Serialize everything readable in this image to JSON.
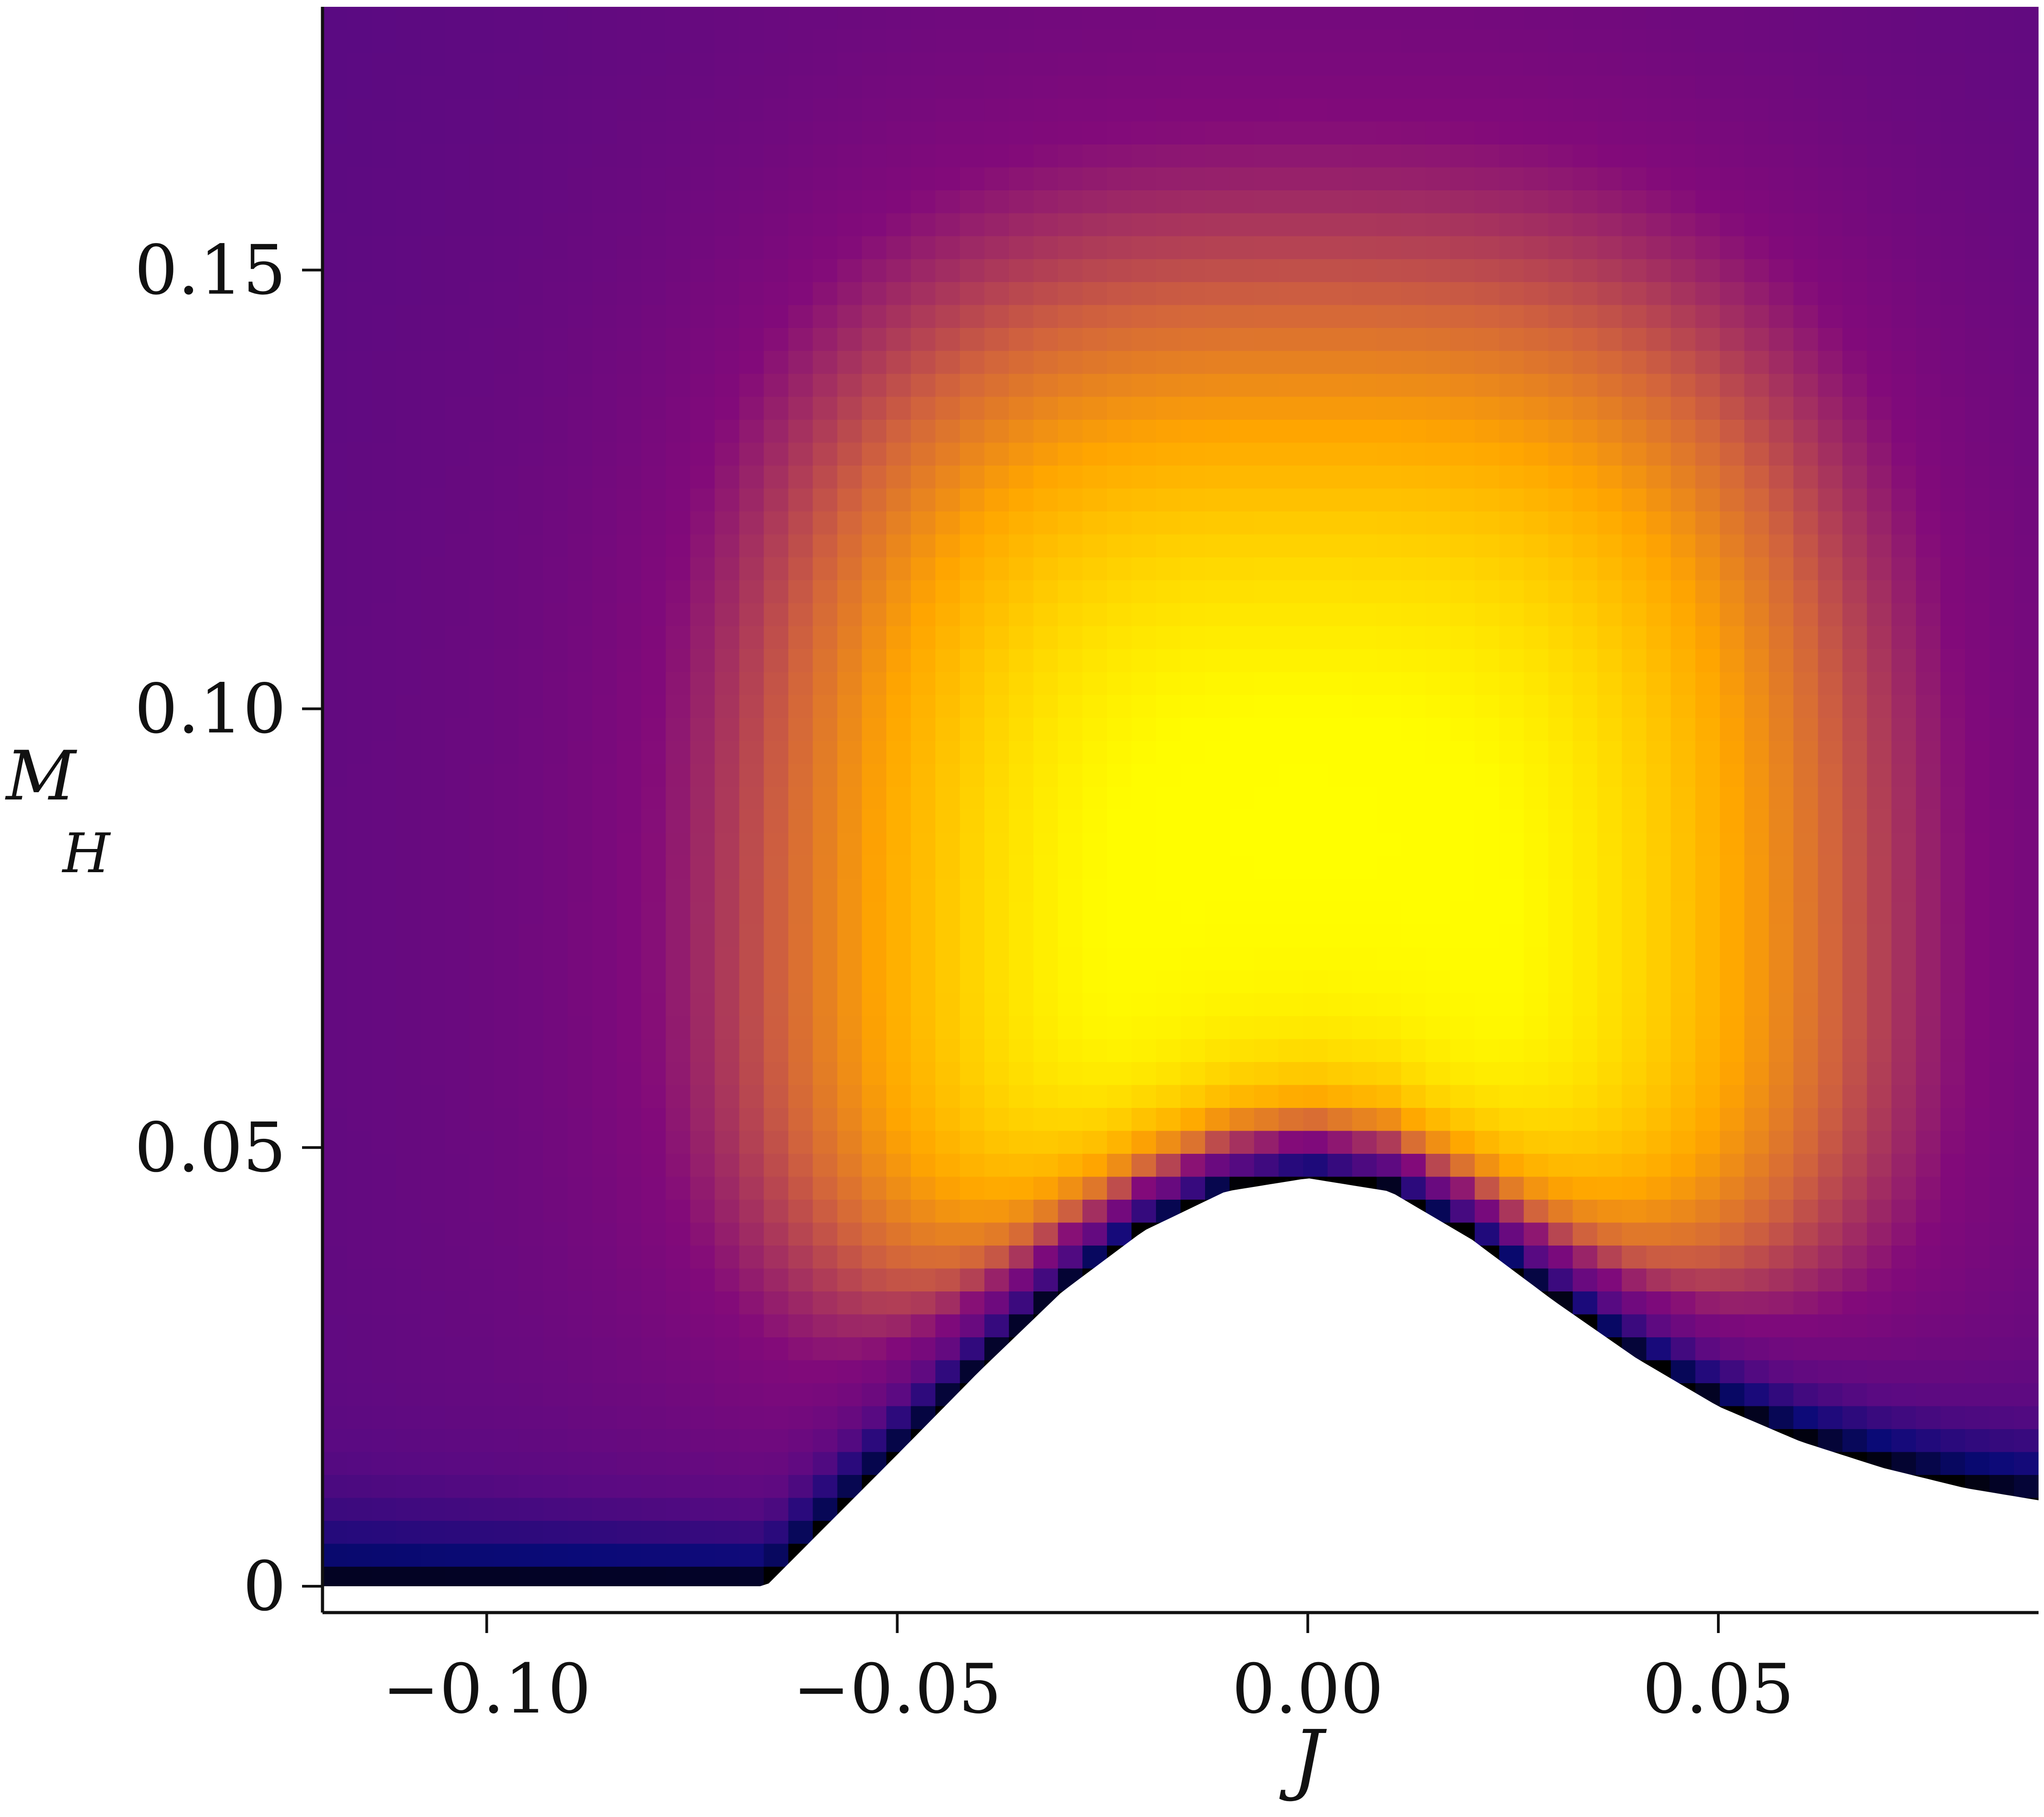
{
  "chart_data": {
    "type": "heatmap",
    "title": "",
    "xlabel": "J",
    "ylabel": "M",
    "ylabel_subscript": "H",
    "xlim": [
      -0.12,
      0.089
    ],
    "ylim": [
      -0.003,
      0.18
    ],
    "x_ticks": [
      {
        "value": -0.1,
        "label": "−0.10"
      },
      {
        "value": -0.05,
        "label": "−0.05"
      },
      {
        "value": 0.0,
        "label": "0.00"
      },
      {
        "value": 0.05,
        "label": "0.05"
      }
    ],
    "y_ticks": [
      {
        "value": 0,
        "label": "0"
      },
      {
        "value": 0.05,
        "label": "0.05"
      },
      {
        "value": 0.1,
        "label": "0.10"
      },
      {
        "value": 0.15,
        "label": "0.15"
      }
    ],
    "colormap": [
      "#000000",
      "#0a0a78",
      "#5a0a82",
      "#820a7a",
      "#ffa500",
      "#ffff00"
    ],
    "peak": {
      "J": 0.0,
      "M_H": 0.072
    },
    "lower_boundary": {
      "J": [
        -0.12,
        -0.066,
        -0.05,
        -0.04,
        -0.03,
        -0.02,
        -0.01,
        0.0,
        0.01,
        0.02,
        0.03,
        0.04,
        0.05,
        0.06,
        0.07,
        0.08,
        0.089
      ],
      "M_H": [
        0.0,
        0.0,
        0.015,
        0.0245,
        0.0335,
        0.0405,
        0.045,
        0.0465,
        0.045,
        0.0395,
        0.0325,
        0.026,
        0.0205,
        0.0165,
        0.0135,
        0.0112,
        0.0098
      ]
    },
    "grid": false,
    "legend": "none"
  }
}
